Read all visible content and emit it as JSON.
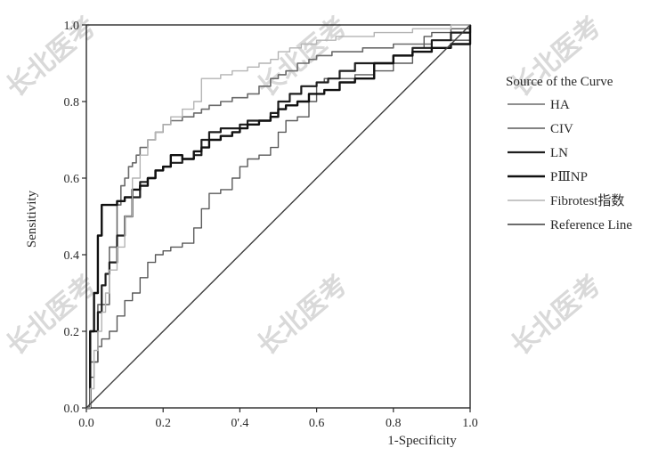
{
  "chart_data": {
    "type": "line",
    "title": "",
    "xlabel": "1-Specificity",
    "ylabel": "Sensitivity",
    "xlim": [
      0,
      1
    ],
    "ylim": [
      0,
      1
    ],
    "x_ticks": [
      "0.0",
      "0.2",
      "0'.4",
      "0.6",
      "0.8",
      "1.0"
    ],
    "y_ticks": [
      "0.0",
      "0.2",
      "0.4",
      "0.6",
      "0.8",
      "1.0"
    ],
    "grid": false,
    "legend_title": "Source of the Curve",
    "legend_position": "right",
    "series": [
      {
        "name": "HA",
        "color": "#6a6a6a",
        "x": [
          0,
          0.01,
          0.01,
          0.03,
          0.03,
          0.06,
          0.08,
          0.09,
          0.1,
          0.11,
          0.12,
          0.13,
          0.14,
          0.16,
          0.18,
          0.2,
          0.22,
          0.25,
          0.28,
          0.3,
          0.32,
          0.35,
          0.38,
          0.4,
          0.42,
          0.45,
          0.48,
          0.5,
          0.52,
          0.55,
          0.58,
          0.6,
          0.64,
          0.68,
          0.72,
          0.76,
          0.8,
          0.85,
          0.9,
          0.95,
          0.98,
          1.0
        ],
        "y": [
          0,
          0.02,
          0.12,
          0.2,
          0.27,
          0.42,
          0.53,
          0.58,
          0.6,
          0.63,
          0.64,
          0.66,
          0.68,
          0.7,
          0.72,
          0.74,
          0.75,
          0.76,
          0.77,
          0.78,
          0.79,
          0.8,
          0.81,
          0.81,
          0.82,
          0.84,
          0.86,
          0.87,
          0.88,
          0.9,
          0.91,
          0.92,
          0.93,
          0.93,
          0.94,
          0.94,
          0.95,
          0.95,
          0.96,
          0.96,
          0.96,
          1.0
        ]
      },
      {
        "name": "CIV",
        "color": "#5a5a5a",
        "x": [
          0,
          0.01,
          0.02,
          0.03,
          0.04,
          0.06,
          0.08,
          0.1,
          0.12,
          0.14,
          0.16,
          0.18,
          0.2,
          0.22,
          0.25,
          0.28,
          0.3,
          0.32,
          0.35,
          0.38,
          0.4,
          0.42,
          0.45,
          0.48,
          0.5,
          0.52,
          0.55,
          0.58,
          0.6,
          0.62,
          0.65,
          0.7,
          0.75,
          0.8,
          0.85,
          0.88,
          0.9,
          0.95,
          1.0
        ],
        "y": [
          0,
          0.08,
          0.12,
          0.16,
          0.18,
          0.2,
          0.24,
          0.28,
          0.3,
          0.34,
          0.38,
          0.4,
          0.41,
          0.42,
          0.43,
          0.47,
          0.52,
          0.56,
          0.57,
          0.6,
          0.63,
          0.65,
          0.66,
          0.68,
          0.72,
          0.75,
          0.76,
          0.8,
          0.85,
          0.86,
          0.86,
          0.87,
          0.88,
          0.9,
          0.94,
          0.97,
          0.98,
          0.99,
          1.0
        ]
      },
      {
        "name": "LN",
        "color": "#1e1e1e",
        "x": [
          0,
          0.01,
          0.01,
          0.03,
          0.04,
          0.05,
          0.06,
          0.08,
          0.1,
          0.12,
          0.14,
          0.16,
          0.18,
          0.2,
          0.22,
          0.25,
          0.28,
          0.3,
          0.32,
          0.35,
          0.38,
          0.4,
          0.42,
          0.45,
          0.48,
          0.5,
          0.53,
          0.56,
          0.6,
          0.63,
          0.66,
          0.7,
          0.75,
          0.8,
          0.85,
          0.9,
          0.95,
          1.0
        ],
        "y": [
          0,
          0.05,
          0.2,
          0.25,
          0.32,
          0.35,
          0.38,
          0.45,
          0.5,
          0.55,
          0.59,
          0.6,
          0.62,
          0.63,
          0.64,
          0.65,
          0.66,
          0.7,
          0.72,
          0.73,
          0.73,
          0.74,
          0.75,
          0.75,
          0.77,
          0.8,
          0.82,
          0.84,
          0.85,
          0.86,
          0.88,
          0.9,
          0.9,
          0.92,
          0.94,
          0.96,
          0.98,
          1.0
        ]
      },
      {
        "name": "PⅢNP",
        "color": "#111111",
        "x": [
          0,
          0.01,
          0.02,
          0.02,
          0.03,
          0.03,
          0.04,
          0.06,
          0.08,
          0.1,
          0.12,
          0.14,
          0.16,
          0.18,
          0.2,
          0.22,
          0.25,
          0.28,
          0.3,
          0.32,
          0.35,
          0.38,
          0.4,
          0.42,
          0.45,
          0.48,
          0.5,
          0.52,
          0.55,
          0.58,
          0.62,
          0.66,
          0.7,
          0.75,
          0.8,
          0.85,
          0.9,
          0.95,
          1.0
        ],
        "y": [
          0,
          0.2,
          0.25,
          0.3,
          0.35,
          0.45,
          0.53,
          0.53,
          0.54,
          0.55,
          0.57,
          0.58,
          0.6,
          0.62,
          0.63,
          0.66,
          0.65,
          0.67,
          0.68,
          0.7,
          0.71,
          0.72,
          0.73,
          0.74,
          0.75,
          0.76,
          0.78,
          0.79,
          0.8,
          0.82,
          0.83,
          0.85,
          0.86,
          0.9,
          0.92,
          0.93,
          0.94,
          0.95,
          1.0
        ]
      },
      {
        "name": "Fibrotest指数",
        "color": "#b4b4b4",
        "x": [
          0,
          0.01,
          0.02,
          0.03,
          0.04,
          0.05,
          0.06,
          0.08,
          0.1,
          0.12,
          0.14,
          0.16,
          0.18,
          0.2,
          0.22,
          0.25,
          0.28,
          0.3,
          0.32,
          0.35,
          0.38,
          0.4,
          0.42,
          0.45,
          0.48,
          0.5,
          0.53,
          0.56,
          0.6,
          0.65,
          0.7,
          0.75,
          0.8,
          0.85,
          0.9,
          0.95,
          1.0
        ],
        "y": [
          0,
          0.05,
          0.15,
          0.2,
          0.25,
          0.3,
          0.36,
          0.42,
          0.5,
          0.6,
          0.66,
          0.7,
          0.72,
          0.74,
          0.76,
          0.78,
          0.8,
          0.86,
          0.86,
          0.87,
          0.88,
          0.88,
          0.89,
          0.9,
          0.91,
          0.93,
          0.94,
          0.95,
          0.96,
          0.97,
          0.97,
          0.98,
          0.98,
          0.99,
          0.99,
          1.0,
          1.0
        ]
      },
      {
        "name": "Reference Line",
        "color": "#3c3c3c",
        "x": [
          0,
          1
        ],
        "y": [
          0,
          1
        ]
      }
    ],
    "watermark": "长北医考"
  }
}
